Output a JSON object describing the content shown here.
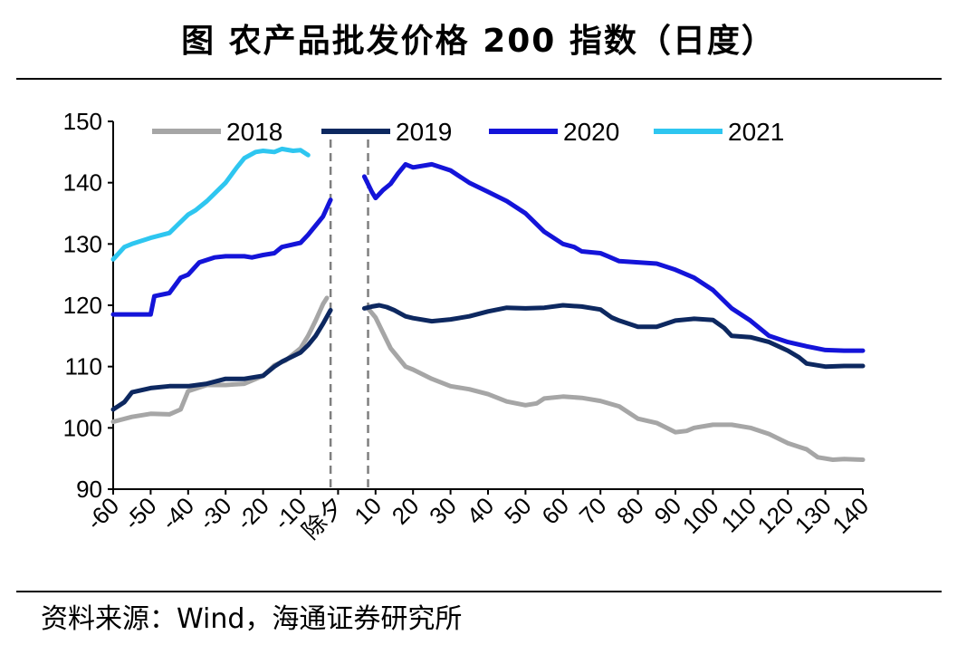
{
  "figure": {
    "title": "图  农产品批发价格 200 指数（日度）",
    "source": "资料来源：Wind，海通证券研究所"
  },
  "chart_data": {
    "type": "line",
    "xlabel": "",
    "ylabel": "",
    "xlim": [
      -60,
      140
    ],
    "ylim": [
      90,
      150
    ],
    "y_ticks": [
      90,
      100,
      110,
      120,
      130,
      140,
      150
    ],
    "x_tick_labels": [
      "-60",
      "-50",
      "-40",
      "-30",
      "-20",
      "-10",
      "除夕",
      "10",
      "20",
      "30",
      "40",
      "50",
      "60",
      "70",
      "80",
      "90",
      "100",
      "110",
      "120",
      "130",
      "140"
    ],
    "x_tick_values": [
      -60,
      -50,
      -40,
      -30,
      -20,
      -10,
      0,
      10,
      20,
      30,
      40,
      50,
      60,
      70,
      80,
      90,
      100,
      110,
      120,
      130,
      140
    ],
    "vlines": [
      -2,
      8
    ],
    "legend_position": "top",
    "grid": false,
    "series": [
      {
        "name": "2018",
        "color": "#a6a6a6",
        "segments": [
          [
            [
              -60,
              101.0
            ],
            [
              -55,
              101.8
            ],
            [
              -50,
              102.3
            ],
            [
              -45,
              102.2
            ],
            [
              -42,
              103.0
            ],
            [
              -40,
              106.0
            ],
            [
              -35,
              107.0
            ],
            [
              -30,
              107.0
            ],
            [
              -25,
              107.2
            ],
            [
              -20,
              108.5
            ],
            [
              -17,
              110.2
            ],
            [
              -14,
              111.0
            ],
            [
              -10,
              113.0
            ],
            [
              -8,
              115.0
            ],
            [
              -6,
              117.5
            ],
            [
              -4,
              120.2
            ],
            [
              -3,
              121.2
            ]
          ],
          [
            [
              8,
              119.5
            ],
            [
              10,
              118.0
            ],
            [
              12,
              115.5
            ],
            [
              14,
              113.0
            ],
            [
              16,
              111.5
            ],
            [
              18,
              110.0
            ],
            [
              20,
              109.5
            ],
            [
              25,
              108.0
            ],
            [
              30,
              106.8
            ],
            [
              35,
              106.3
            ],
            [
              40,
              105.5
            ],
            [
              45,
              104.3
            ],
            [
              50,
              103.7
            ],
            [
              53,
              104.0
            ],
            [
              55,
              104.8
            ],
            [
              60,
              105.1
            ],
            [
              65,
              104.9
            ],
            [
              70,
              104.4
            ],
            [
              75,
              103.5
            ],
            [
              80,
              101.5
            ],
            [
              85,
              100.8
            ],
            [
              90,
              99.3
            ],
            [
              93,
              99.5
            ],
            [
              95,
              100.0
            ],
            [
              100,
              100.5
            ],
            [
              105,
              100.5
            ],
            [
              110,
              100.0
            ],
            [
              115,
              99.0
            ],
            [
              120,
              97.5
            ],
            [
              125,
              96.5
            ],
            [
              128,
              95.2
            ],
            [
              132,
              94.8
            ],
            [
              135,
              94.9
            ],
            [
              140,
              94.8
            ]
          ]
        ]
      },
      {
        "name": "2019",
        "color": "#0d2860",
        "segments": [
          [
            [
              -60,
              103.0
            ],
            [
              -57,
              104.2
            ],
            [
              -55,
              105.8
            ],
            [
              -50,
              106.5
            ],
            [
              -45,
              106.8
            ],
            [
              -40,
              106.8
            ],
            [
              -35,
              107.2
            ],
            [
              -30,
              108.0
            ],
            [
              -25,
              108.0
            ],
            [
              -20,
              108.5
            ],
            [
              -17,
              110.0
            ],
            [
              -15,
              110.8
            ],
            [
              -10,
              112.3
            ],
            [
              -8,
              113.5
            ],
            [
              -6,
              115.0
            ],
            [
              -4,
              117.0
            ],
            [
              -2,
              119.2
            ]
          ],
          [
            [
              7,
              119.5
            ],
            [
              9,
              119.8
            ],
            [
              11,
              120.0
            ],
            [
              13,
              119.7
            ],
            [
              15,
              119.2
            ],
            [
              18,
              118.2
            ],
            [
              20,
              117.9
            ],
            [
              25,
              117.4
            ],
            [
              30,
              117.7
            ],
            [
              35,
              118.2
            ],
            [
              40,
              119.0
            ],
            [
              45,
              119.6
            ],
            [
              50,
              119.5
            ],
            [
              55,
              119.6
            ],
            [
              60,
              120.0
            ],
            [
              65,
              119.8
            ],
            [
              70,
              119.3
            ],
            [
              73,
              118.0
            ],
            [
              75,
              117.5
            ],
            [
              80,
              116.5
            ],
            [
              85,
              116.5
            ],
            [
              90,
              117.5
            ],
            [
              95,
              117.8
            ],
            [
              100,
              117.6
            ],
            [
              103,
              116.3
            ],
            [
              105,
              115.0
            ],
            [
              110,
              114.8
            ],
            [
              115,
              114.0
            ],
            [
              120,
              112.6
            ],
            [
              123,
              111.5
            ],
            [
              125,
              110.5
            ],
            [
              130,
              110.0
            ],
            [
              135,
              110.1
            ],
            [
              140,
              110.1
            ]
          ]
        ]
      },
      {
        "name": "2020",
        "color": "#1414d9",
        "segments": [
          [
            [
              -60,
              118.5
            ],
            [
              -55,
              118.5
            ],
            [
              -50,
              118.5
            ],
            [
              -49,
              121.5
            ],
            [
              -45,
              122.0
            ],
            [
              -42,
              124.5
            ],
            [
              -40,
              125.0
            ],
            [
              -37,
              127.0
            ],
            [
              -33,
              127.8
            ],
            [
              -30,
              128.0
            ],
            [
              -25,
              128.0
            ],
            [
              -23,
              127.8
            ],
            [
              -20,
              128.2
            ],
            [
              -17,
              128.5
            ],
            [
              -15,
              129.5
            ],
            [
              -10,
              130.2
            ],
            [
              -8,
              131.5
            ],
            [
              -6,
              133.0
            ],
            [
              -4,
              134.5
            ],
            [
              -2,
              137.2
            ]
          ],
          [
            [
              7,
              141.0
            ],
            [
              9,
              138.5
            ],
            [
              10,
              137.5
            ],
            [
              12,
              138.8
            ],
            [
              14,
              139.8
            ],
            [
              16,
              141.5
            ],
            [
              18,
              143.0
            ],
            [
              20,
              142.5
            ],
            [
              25,
              143.0
            ],
            [
              30,
              142.0
            ],
            [
              35,
              140.0
            ],
            [
              40,
              138.5
            ],
            [
              45,
              137.0
            ],
            [
              50,
              135.0
            ],
            [
              55,
              132.0
            ],
            [
              60,
              130.0
            ],
            [
              63,
              129.5
            ],
            [
              65,
              128.8
            ],
            [
              70,
              128.5
            ],
            [
              72,
              128.0
            ],
            [
              75,
              127.2
            ],
            [
              80,
              127.0
            ],
            [
              85,
              126.8
            ],
            [
              90,
              125.8
            ],
            [
              95,
              124.5
            ],
            [
              100,
              122.5
            ],
            [
              105,
              119.5
            ],
            [
              110,
              117.5
            ],
            [
              115,
              115.0
            ],
            [
              120,
              114.0
            ],
            [
              125,
              113.3
            ],
            [
              130,
              112.7
            ],
            [
              135,
              112.6
            ],
            [
              140,
              112.6
            ]
          ]
        ]
      },
      {
        "name": "2021",
        "color": "#2ec6f0",
        "segments": [
          [
            [
              -60,
              127.5
            ],
            [
              -57,
              129.5
            ],
            [
              -55,
              130.0
            ],
            [
              -50,
              131.0
            ],
            [
              -45,
              131.8
            ],
            [
              -43,
              133.0
            ],
            [
              -40,
              134.8
            ],
            [
              -38,
              135.5
            ],
            [
              -35,
              137.0
            ],
            [
              -30,
              140.0
            ],
            [
              -27,
              142.5
            ],
            [
              -25,
              144.0
            ],
            [
              -22,
              145.0
            ],
            [
              -20,
              145.2
            ],
            [
              -17,
              145.0
            ],
            [
              -15,
              145.5
            ],
            [
              -12,
              145.2
            ],
            [
              -10,
              145.3
            ],
            [
              -8,
              144.5
            ]
          ]
        ]
      }
    ]
  }
}
